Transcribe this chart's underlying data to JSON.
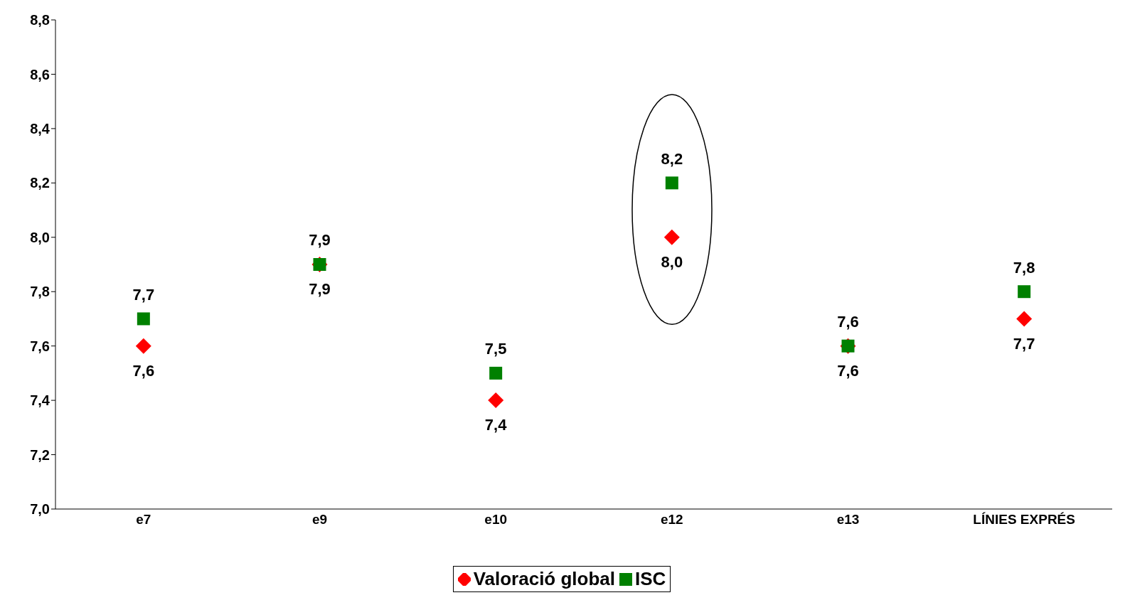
{
  "chart_data": {
    "type": "scatter",
    "categories": [
      "e7",
      "e9",
      "e10",
      "e12",
      "e13",
      "LÍNIES EXPRÉS"
    ],
    "series": [
      {
        "name": "Valoració global",
        "color": "#ff0000",
        "marker": "diamond",
        "values": [
          7.6,
          7.9,
          7.4,
          8.0,
          7.6,
          7.7
        ],
        "value_labels": [
          "7,6",
          "7,9",
          "7,4",
          "8,0",
          "7,6",
          "7,7"
        ]
      },
      {
        "name": "ISC",
        "color": "#008000",
        "marker": "square",
        "values": [
          7.7,
          7.9,
          7.5,
          8.2,
          7.6,
          7.8
        ],
        "value_labels": [
          "7,7",
          "7,9",
          "7,5",
          "8,2",
          "7,6",
          "7,8"
        ]
      }
    ],
    "ylim": [
      7.0,
      8.8
    ],
    "yticks": [
      {
        "value": 7.0,
        "label": "7,0"
      },
      {
        "value": 7.2,
        "label": "7,2"
      },
      {
        "value": 7.4,
        "label": "7,4"
      },
      {
        "value": 7.6,
        "label": "7,6"
      },
      {
        "value": 7.8,
        "label": "7,8"
      },
      {
        "value": 8.0,
        "label": "8,0"
      },
      {
        "value": 8.2,
        "label": "8,2"
      },
      {
        "value": 8.4,
        "label": "8,4"
      },
      {
        "value": 8.6,
        "label": "8,6"
      },
      {
        "value": 8.8,
        "label": "8,8"
      }
    ],
    "grid": false,
    "legend": "bottom"
  }
}
